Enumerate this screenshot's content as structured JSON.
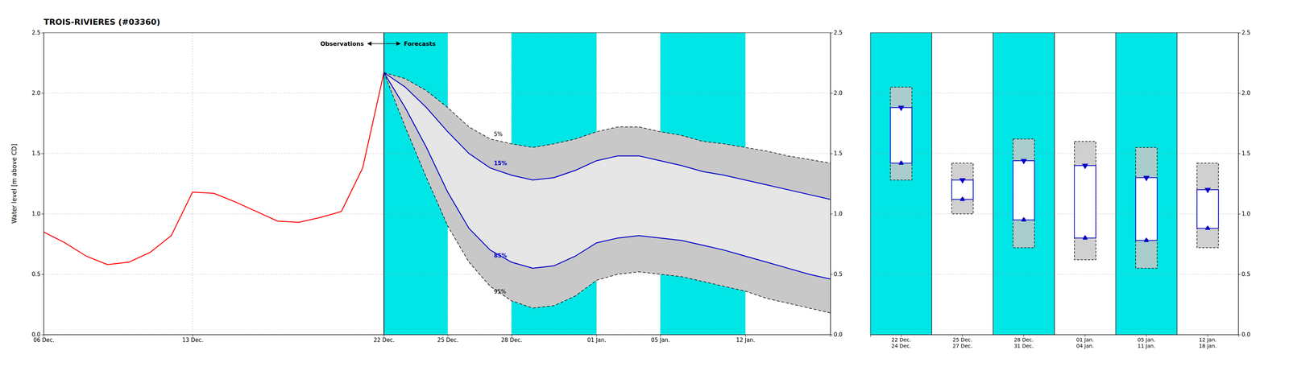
{
  "chart_data": [
    {
      "type": "line",
      "title": "TROIS-RIVIERES (#03360)",
      "y_label": "Water level [m above CD]",
      "xlim": [
        0,
        37
      ],
      "xticks": [
        {
          "value": 0,
          "label": "06 Dec."
        },
        {
          "value": 7,
          "label": "13 Dec."
        },
        {
          "value": 16,
          "label": "22 Dec."
        },
        {
          "value": 19,
          "label": "25 Dec."
        },
        {
          "value": 22,
          "label": "28 Dec."
        },
        {
          "value": 26,
          "label": "01 Jan."
        },
        {
          "value": 29,
          "label": "05 Jan."
        },
        {
          "value": 33,
          "label": "12 Jan."
        },
        {
          "value": 37,
          "label": null
        }
      ],
      "ylim": [
        0.0,
        2.5
      ],
      "yticks": [
        {
          "value": 0.0,
          "label": "0.0"
        },
        0.5,
        {
          "value": 1.0,
          "label": "1.0"
        },
        1.5,
        {
          "value": 2.0,
          "label": "2.0"
        },
        2.5
      ],
      "y2lim": [
        0.0,
        2.5
      ],
      "y2ticks": [
        {
          "value": 0.0,
          "label": "0.0"
        },
        0.5,
        {
          "value": 1.0,
          "label": "1.0"
        },
        1.5,
        {
          "value": 2.0,
          "label": "2.0"
        },
        2.5
      ],
      "grid": true,
      "series": [
        {
          "name": "Observations",
          "color": "#ff0000",
          "line_style": "solid",
          "x": [
            0,
            1,
            2,
            3,
            4,
            5,
            6,
            7,
            8,
            9,
            10,
            11,
            12,
            13,
            14,
            15,
            16
          ],
          "values": [
            0.85,
            0.76,
            0.65,
            0.58,
            0.6,
            0.68,
            0.82,
            1.18,
            1.17,
            1.1,
            1.02,
            0.94,
            0.93,
            0.97,
            1.02,
            1.38,
            2.17
          ]
        },
        {
          "name": "5%",
          "color": "#000000",
          "line_style": "dashed",
          "x": [
            16,
            17,
            18,
            19,
            20,
            21,
            22,
            23,
            24,
            25,
            26,
            27,
            28,
            29,
            30,
            31,
            32,
            33,
            34,
            35,
            36,
            37
          ],
          "values": [
            2.17,
            2.12,
            2.02,
            1.88,
            1.72,
            1.62,
            1.58,
            1.55,
            1.58,
            1.62,
            1.68,
            1.72,
            1.72,
            1.68,
            1.65,
            1.6,
            1.58,
            1.55,
            1.52,
            1.48,
            1.45,
            1.42
          ]
        },
        {
          "name": "15%",
          "color": "#0000cc",
          "line_style": "solid",
          "x": [
            16,
            17,
            18,
            19,
            20,
            21,
            22,
            23,
            24,
            25,
            26,
            27,
            28,
            29,
            30,
            31,
            32,
            33,
            34,
            35,
            36,
            37
          ],
          "values": [
            2.17,
            2.05,
            1.88,
            1.68,
            1.5,
            1.38,
            1.32,
            1.28,
            1.3,
            1.36,
            1.44,
            1.48,
            1.48,
            1.44,
            1.4,
            1.35,
            1.32,
            1.28,
            1.24,
            1.2,
            1.16,
            1.12
          ]
        },
        {
          "name": "85%",
          "color": "#0000cc",
          "line_style": "solid",
          "x": [
            16,
            17,
            18,
            19,
            20,
            21,
            22,
            23,
            24,
            25,
            26,
            27,
            28,
            29,
            30,
            31,
            32,
            33,
            34,
            35,
            36,
            37
          ],
          "values": [
            2.17,
            1.88,
            1.55,
            1.18,
            0.88,
            0.7,
            0.6,
            0.55,
            0.57,
            0.65,
            0.76,
            0.8,
            0.82,
            0.8,
            0.78,
            0.74,
            0.7,
            0.65,
            0.6,
            0.55,
            0.5,
            0.46
          ]
        },
        {
          "name": "95%",
          "color": "#000000",
          "line_style": "dashed",
          "x": [
            16,
            17,
            18,
            19,
            20,
            21,
            22,
            23,
            24,
            25,
            26,
            27,
            28,
            29,
            30,
            31,
            32,
            33,
            34,
            35,
            36,
            37
          ],
          "values": [
            2.17,
            1.72,
            1.3,
            0.9,
            0.6,
            0.4,
            0.28,
            0.22,
            0.24,
            0.32,
            0.45,
            0.5,
            0.52,
            0.5,
            0.48,
            0.44,
            0.4,
            0.36,
            0.3,
            0.26,
            0.22,
            0.18
          ]
        }
      ],
      "annotation": "Forecasts",
      "divider_x": 16,
      "shaded_ranges": [
        [
          16,
          19
        ],
        [
          22,
          26
        ],
        [
          29,
          33
        ]
      ],
      "shade_color": "#00E5E5",
      "fill_color": "#c8c8c8"
    },
    {
      "type": "box",
      "categories": [
        "22 Dec.\n24 Dec.",
        "25 Dec.\n27 Dec.",
        "28 Dec.\n31 Dec.",
        "01 Jan.\n04 Jan.",
        "05 Jan.\n11 Jan.",
        "12 Jan.\n18 Jan."
      ],
      "ylim": [
        0.0,
        2.5
      ],
      "yticks": [
        {
          "value": 0.0,
          "label": "0.0"
        },
        0.5,
        {
          "value": 1.0,
          "label": "1.0"
        },
        1.5,
        {
          "value": 2.0,
          "label": "2.0"
        },
        2.5
      ],
      "grid": true,
      "p5": [
        2.05,
        1.42,
        1.62,
        1.6,
        1.55,
        1.42
      ],
      "p15": [
        1.88,
        1.28,
        1.44,
        1.4,
        1.3,
        1.2
      ],
      "p85": [
        1.42,
        1.12,
        0.95,
        0.8,
        0.78,
        0.88
      ],
      "p95": [
        1.28,
        1.0,
        0.72,
        0.62,
        0.55,
        0.72
      ],
      "color": "#0000cc",
      "fill_color": "#c8c8c8",
      "shaded": [
        true,
        false,
        true,
        false,
        true,
        false
      ],
      "shade_color": "#00E5E5"
    }
  ]
}
